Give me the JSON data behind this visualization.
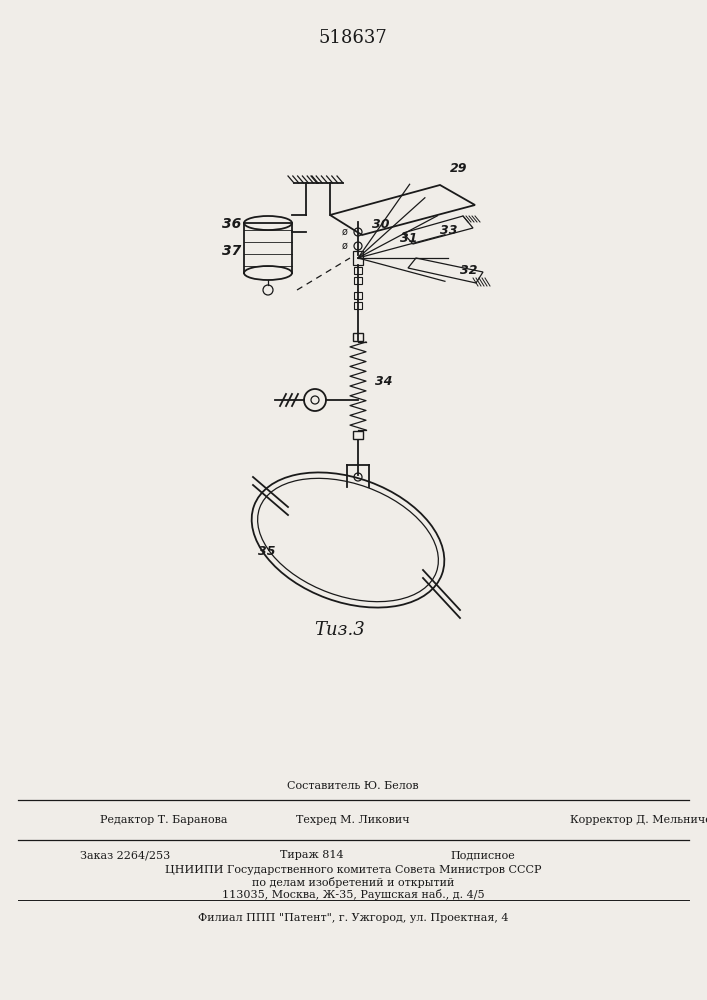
{
  "title": "518637",
  "fig_label": "Τиз.3",
  "bg_color": "#f0ede8",
  "line_color": "#1a1a1a",
  "footer": {
    "line1_center": "Составитель Ю. Белов",
    "line2_left": "Редактор Т. Баранова",
    "line2_center": "Техред М. Ликович",
    "line2_right": "Корректор Д. Мельниченко",
    "line3_left": "Заказ 2264/253",
    "line3_center": "Тираж 814",
    "line3_right": "Подписное",
    "line4": "ЦНИИПИ Государственного комитета Совета Министров СССР",
    "line5": "по делам изобретений и открытий",
    "line6": "113035, Москва, Ж-35, Раушская наб., д. 4/5",
    "line7": "Филиал ППП \"Патент\", г. Ужгород, ул. Проектная, 4"
  }
}
